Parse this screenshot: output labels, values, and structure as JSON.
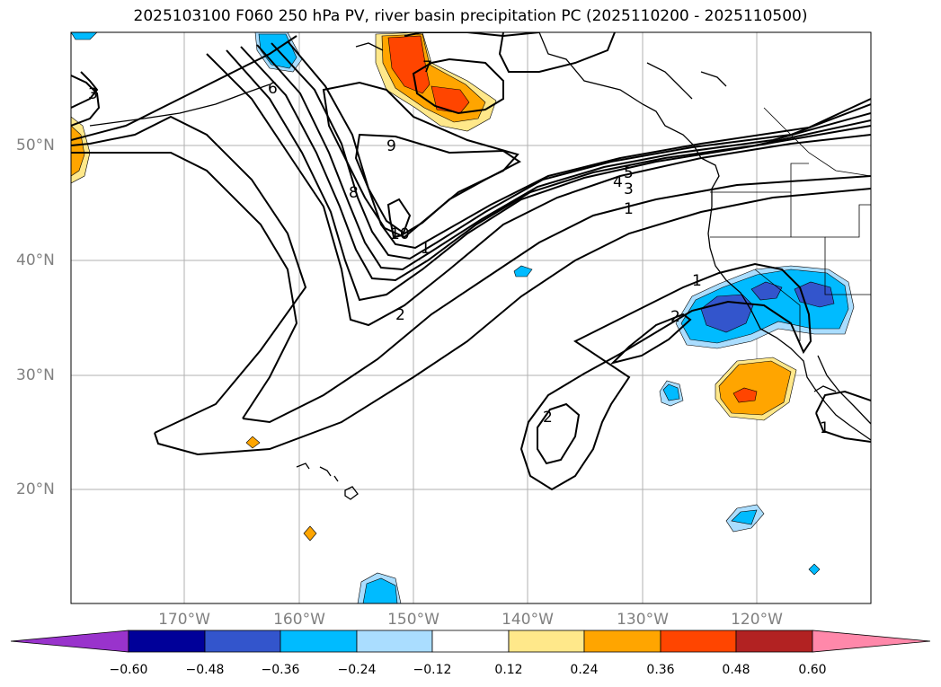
{
  "title": "2025103100 F060 250 hPa PV, river basin precipitation PC (2025110200 - 2025110500)",
  "map": {
    "lon_labels": [
      "170°W",
      "160°W",
      "150°W",
      "140°W",
      "130°W",
      "120°W"
    ],
    "lat_labels": [
      "50°N",
      "40°N",
      "30°N",
      "20°N"
    ],
    "contour_labels": [
      "3",
      "6",
      "9",
      "8",
      "10",
      "7",
      "5",
      "4",
      "3",
      "1",
      "1",
      "2",
      "1",
      "2",
      "2",
      "1"
    ]
  },
  "colorbar": {
    "tick_labels": [
      "−0.60",
      "−0.48",
      "−0.36",
      "−0.24",
      "−0.12",
      "0.12",
      "0.24",
      "0.36",
      "0.48",
      "0.60"
    ],
    "colors": [
      "#9933cc",
      "#000099",
      "#3355cc",
      "#00bbff",
      "#aaddff",
      "#ffffff",
      "#ffe88a",
      "#ffa500",
      "#ff4500",
      "#b22222",
      "#ff88aa"
    ]
  }
}
